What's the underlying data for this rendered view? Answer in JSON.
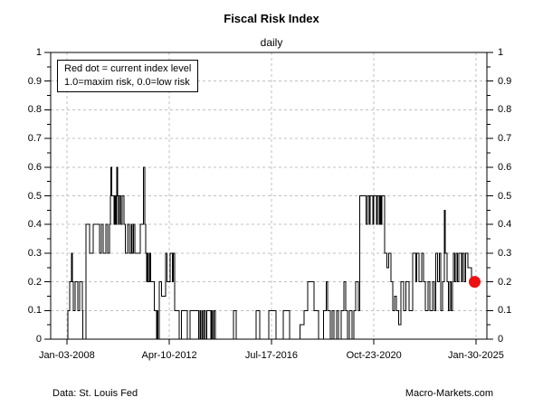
{
  "footer": {
    "left": "Data: St. Louis Fed",
    "right": "Macro-Markets.com"
  },
  "chart_data": {
    "type": "line",
    "style": "step",
    "title": "Fiscal Risk Index",
    "subtitle": "daily",
    "ylim": [
      0,
      1
    ],
    "grid": "dashed-both-axes",
    "legend_lines": {
      "line1": "Red dot = current index level",
      "line2": "1.0=maxim risk, 0.0=low risk"
    },
    "colors": {
      "line": "#000000",
      "grid": "#c0c0c0",
      "axis": "#000000",
      "dot": "#ee1111",
      "background": "#ffffff"
    },
    "yticks": [
      {
        "label": "1",
        "v": 1.0
      },
      {
        "label": "0.9",
        "v": 0.9
      },
      {
        "label": "0.8",
        "v": 0.8
      },
      {
        "label": "0.7",
        "v": 0.7
      },
      {
        "label": "0.6",
        "v": 0.6
      },
      {
        "label": "0.5",
        "v": 0.5
      },
      {
        "label": "0.4",
        "v": 0.4
      },
      {
        "label": "0.3",
        "v": 0.3
      },
      {
        "label": "0.2",
        "v": 0.2
      },
      {
        "label": "0.1",
        "v": 0.1
      },
      {
        "label": "0",
        "v": 0.0
      }
    ],
    "xticks": [
      {
        "label": "Jan-03-2008",
        "f": 0.037
      },
      {
        "label": "Apr-10-2012",
        "f": 0.272
      },
      {
        "label": "Jul-17-2016",
        "f": 0.506
      },
      {
        "label": "Oct-23-2020",
        "f": 0.741
      },
      {
        "label": "Jan-30-2025",
        "f": 0.975
      }
    ],
    "step_points": [
      [
        0.0,
        0
      ],
      [
        0.039,
        0.1
      ],
      [
        0.044,
        0.2
      ],
      [
        0.048,
        0.3
      ],
      [
        0.05,
        0.2
      ],
      [
        0.052,
        0.1
      ],
      [
        0.056,
        0.2
      ],
      [
        0.062,
        0.1
      ],
      [
        0.066,
        0.2
      ],
      [
        0.073,
        0.1
      ],
      [
        0.074,
        0
      ],
      [
        0.081,
        0.4
      ],
      [
        0.089,
        0.3
      ],
      [
        0.098,
        0.4
      ],
      [
        0.112,
        0.3
      ],
      [
        0.116,
        0.4
      ],
      [
        0.12,
        0.3
      ],
      [
        0.127,
        0.4
      ],
      [
        0.131,
        0.3
      ],
      [
        0.135,
        0.4
      ],
      [
        0.137,
        0.5
      ],
      [
        0.138,
        0.6
      ],
      [
        0.14,
        0.5
      ],
      [
        0.145,
        0.4
      ],
      [
        0.147,
        0.5
      ],
      [
        0.149,
        0.4
      ],
      [
        0.151,
        0.6
      ],
      [
        0.154,
        0.5
      ],
      [
        0.156,
        0.4
      ],
      [
        0.158,
        0.5
      ],
      [
        0.161,
        0.4
      ],
      [
        0.164,
        0.5
      ],
      [
        0.168,
        0.4
      ],
      [
        0.171,
        0.3
      ],
      [
        0.176,
        0.4
      ],
      [
        0.18,
        0.3
      ],
      [
        0.185,
        0.4
      ],
      [
        0.187,
        0.3
      ],
      [
        0.19,
        0.4
      ],
      [
        0.193,
        0.3
      ],
      [
        0.205,
        0.4
      ],
      [
        0.213,
        0.6
      ],
      [
        0.216,
        0.4
      ],
      [
        0.218,
        0.3
      ],
      [
        0.22,
        0.2
      ],
      [
        0.222,
        0.3
      ],
      [
        0.224,
        0.2
      ],
      [
        0.227,
        0.3
      ],
      [
        0.229,
        0.2
      ],
      [
        0.238,
        0.1
      ],
      [
        0.243,
        0
      ],
      [
        0.244,
        0.1
      ],
      [
        0.246,
        0
      ],
      [
        0.249,
        0.2
      ],
      [
        0.254,
        0.15
      ],
      [
        0.263,
        0.3
      ],
      [
        0.267,
        0.2
      ],
      [
        0.274,
        0.3
      ],
      [
        0.279,
        0.2
      ],
      [
        0.281,
        0.3
      ],
      [
        0.284,
        0.1
      ],
      [
        0.295,
        0
      ],
      [
        0.3,
        0.1
      ],
      [
        0.313,
        0
      ],
      [
        0.32,
        0.1
      ],
      [
        0.339,
        0
      ],
      [
        0.342,
        0.1
      ],
      [
        0.344,
        0
      ],
      [
        0.347,
        0.1
      ],
      [
        0.349,
        0
      ],
      [
        0.352,
        0.1
      ],
      [
        0.355,
        0
      ],
      [
        0.358,
        0.1
      ],
      [
        0.367,
        0
      ],
      [
        0.369,
        0.1
      ],
      [
        0.371,
        0
      ],
      [
        0.374,
        0.1
      ],
      [
        0.378,
        0
      ],
      [
        0.419,
        0.1
      ],
      [
        0.425,
        0
      ],
      [
        0.471,
        0.1
      ],
      [
        0.479,
        0
      ],
      [
        0.5,
        0.1
      ],
      [
        0.517,
        0
      ],
      [
        0.533,
        0.1
      ],
      [
        0.548,
        0
      ],
      [
        0.572,
        0.05
      ],
      [
        0.581,
        0.1
      ],
      [
        0.589,
        0.2
      ],
      [
        0.604,
        0.1
      ],
      [
        0.614,
        0
      ],
      [
        0.625,
        0.1
      ],
      [
        0.632,
        0.2
      ],
      [
        0.635,
        0.1
      ],
      [
        0.641,
        0
      ],
      [
        0.645,
        0.1
      ],
      [
        0.649,
        0
      ],
      [
        0.656,
        0.1
      ],
      [
        0.66,
        0
      ],
      [
        0.666,
        0.1
      ],
      [
        0.672,
        0.2
      ],
      [
        0.676,
        0.1
      ],
      [
        0.68,
        0
      ],
      [
        0.685,
        0.1
      ],
      [
        0.691,
        0
      ],
      [
        0.695,
        0.1
      ],
      [
        0.699,
        0.2
      ],
      [
        0.705,
        0.1
      ],
      [
        0.708,
        0.5
      ],
      [
        0.723,
        0.4
      ],
      [
        0.726,
        0.5
      ],
      [
        0.73,
        0.4
      ],
      [
        0.732,
        0.5
      ],
      [
        0.739,
        0.4
      ],
      [
        0.741,
        0.5
      ],
      [
        0.747,
        0.4
      ],
      [
        0.749,
        0.5
      ],
      [
        0.753,
        0.4
      ],
      [
        0.755,
        0.5
      ],
      [
        0.757,
        0.4
      ],
      [
        0.759,
        0.5
      ],
      [
        0.766,
        0.3
      ],
      [
        0.771,
        0.25
      ],
      [
        0.775,
        0.3
      ],
      [
        0.78,
        0.2
      ],
      [
        0.784,
        0.1
      ],
      [
        0.788,
        0.15
      ],
      [
        0.793,
        0.1
      ],
      [
        0.798,
        0.05
      ],
      [
        0.803,
        0.2
      ],
      [
        0.809,
        0.1
      ],
      [
        0.814,
        0.2
      ],
      [
        0.822,
        0.1
      ],
      [
        0.83,
        0.3
      ],
      [
        0.837,
        0.2
      ],
      [
        0.839,
        0.3
      ],
      [
        0.844,
        0.2
      ],
      [
        0.851,
        0.3
      ],
      [
        0.855,
        0.2
      ],
      [
        0.859,
        0.1
      ],
      [
        0.865,
        0.2
      ],
      [
        0.869,
        0.1
      ],
      [
        0.876,
        0.2
      ],
      [
        0.88,
        0.1
      ],
      [
        0.883,
        0.3
      ],
      [
        0.887,
        0.2
      ],
      [
        0.891,
        0.3
      ],
      [
        0.894,
        0.1
      ],
      [
        0.898,
        0.2
      ],
      [
        0.903,
        0.45
      ],
      [
        0.905,
        0.3
      ],
      [
        0.909,
        0.2
      ],
      [
        0.912,
        0.1
      ],
      [
        0.915,
        0.2
      ],
      [
        0.918,
        0.1
      ],
      [
        0.921,
        0.2
      ],
      [
        0.923,
        0.3
      ],
      [
        0.926,
        0.2
      ],
      [
        0.929,
        0.3
      ],
      [
        0.933,
        0.2
      ],
      [
        0.936,
        0.3
      ],
      [
        0.942,
        0.2
      ],
      [
        0.944,
        0.3
      ],
      [
        0.948,
        0.2
      ],
      [
        0.951,
        0.3
      ],
      [
        0.956,
        0.25
      ],
      [
        0.965,
        0.2
      ],
      [
        0.971,
        0.2
      ]
    ],
    "current_point": {
      "f": 0.972,
      "v": 0.2
    }
  }
}
